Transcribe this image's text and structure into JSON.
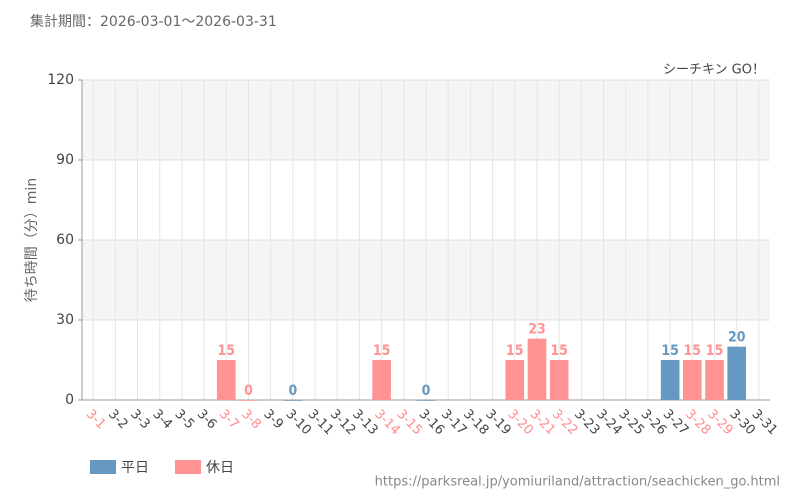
{
  "chart_data": {
    "type": "bar",
    "title": "集計期間：2026-03-01～2026-03-31",
    "subtitle": "シーチキン GO！",
    "y_label": "待ち時間（分）min",
    "source": "https://parksreal.jp/yomiuriland/attraction/seachicken_go.html",
    "categories": [
      "3-1",
      "3-2",
      "3-3",
      "3-4",
      "3-5",
      "3-6",
      "3-7",
      "3-8",
      "3-9",
      "3-10",
      "3-11",
      "3-12",
      "3-13",
      "3-14",
      "3-15",
      "3-16",
      "3-17",
      "3-18",
      "3-19",
      "3-20",
      "3-21",
      "3-22",
      "3-23",
      "3-24",
      "3-25",
      "3-26",
      "3-27",
      "3-28",
      "3-29",
      "3-30",
      "3-31"
    ],
    "category_colors": [
      "#ff8c8c",
      "#444444",
      "#444444",
      "#444444",
      "#444444",
      "#444444",
      "#ff8c8c",
      "#ff8c8c",
      "#444444",
      "#444444",
      "#444444",
      "#444444",
      "#444444",
      "#ff8c8c",
      "#ff8c8c",
      "#444444",
      "#444444",
      "#444444",
      "#444444",
      "#ff8c8c",
      "#ff8c8c",
      "#ff8c8c",
      "#444444",
      "#444444",
      "#444444",
      "#444444",
      "#444444",
      "#ff8c8c",
      "#ff8c8c",
      "#444444",
      "#444444"
    ],
    "series": [
      {
        "name": "平日",
        "color": "#6699c2",
        "values": [
          null,
          null,
          null,
          null,
          null,
          null,
          null,
          null,
          null,
          0,
          null,
          null,
          null,
          null,
          null,
          0,
          null,
          null,
          null,
          null,
          null,
          null,
          null,
          null,
          null,
          null,
          15,
          null,
          null,
          20,
          null
        ]
      },
      {
        "name": "休日",
        "color": "#ff9393",
        "values": [
          null,
          null,
          null,
          null,
          null,
          null,
          15,
          0,
          null,
          null,
          null,
          null,
          null,
          15,
          null,
          null,
          null,
          null,
          null,
          15,
          23,
          15,
          null,
          null,
          null,
          null,
          null,
          15,
          15,
          null,
          null
        ]
      }
    ],
    "ylim": [
      0,
      120
    ],
    "yticks": [
      0,
      30,
      60,
      90,
      120
    ],
    "grid": true
  }
}
